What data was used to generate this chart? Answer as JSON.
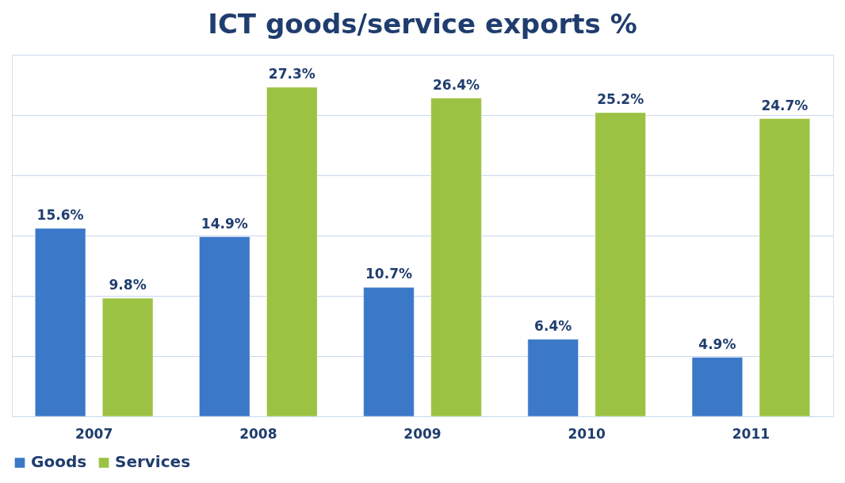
{
  "chart_data": {
    "type": "bar",
    "title": "ICT goods/service exports %",
    "categories": [
      "2007",
      "2008",
      "2009",
      "2010",
      "2011"
    ],
    "series": [
      {
        "name": "Goods",
        "color": "#3b78c8",
        "values": [
          15.6,
          14.9,
          10.7,
          6.4,
          4.9
        ],
        "value_labels": [
          "15.6%",
          "14.9%",
          "10.7%",
          "6.4%",
          "4.9%"
        ]
      },
      {
        "name": "Services",
        "color": "#9bc242",
        "values": [
          9.8,
          27.3,
          26.4,
          25.2,
          24.7
        ],
        "value_labels": [
          "9.8%",
          "27.3%",
          "26.4%",
          "25.2%",
          "24.7%"
        ]
      }
    ],
    "ylim": [
      0,
      30
    ],
    "yticks": [
      {
        "value": 0,
        "label": null
      },
      {
        "value": 5,
        "label": null
      },
      {
        "value": 10,
        "label": null
      },
      {
        "value": 15,
        "label": null
      },
      {
        "value": 20,
        "label": null
      },
      {
        "value": 25,
        "label": null
      },
      {
        "value": 30,
        "label": null
      }
    ],
    "grid": "y",
    "legend": "bottom",
    "tick_labels": "x"
  }
}
